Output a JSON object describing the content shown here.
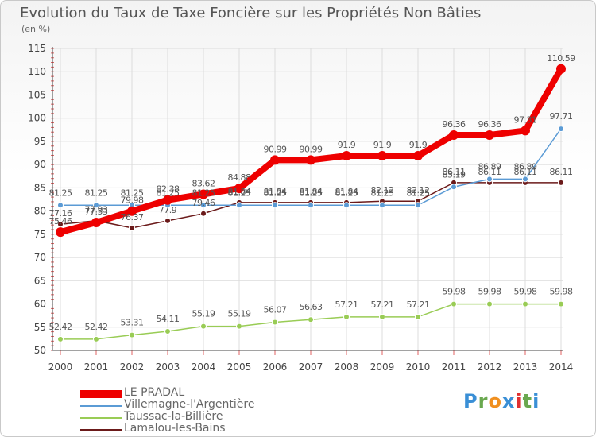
{
  "chart_data": {
    "type": "line",
    "title": "Evolution du Taux de Taxe Foncière sur les Propriétés Non Bâties",
    "subtitle": "(en %)",
    "x": [
      "2000",
      "2001",
      "2002",
      "2003",
      "2004",
      "2005",
      "2006",
      "2007",
      "2008",
      "2009",
      "2010",
      "2011",
      "2012",
      "2013",
      "2014"
    ],
    "ylim": [
      50,
      115
    ],
    "yticks": [
      50,
      55,
      60,
      65,
      70,
      75,
      80,
      85,
      90,
      95,
      100,
      105,
      110,
      115
    ],
    "grid": true,
    "series": [
      {
        "name": "LE PRADAL",
        "color": "#ee0000",
        "values": [
          75.46,
          77.53,
          79.98,
          82.38,
          83.62,
          84.88,
          90.99,
          90.99,
          91.9,
          91.9,
          91.9,
          96.36,
          96.36,
          97.31,
          110.59
        ],
        "labels": [
          "75.46",
          "77.53",
          "79.98",
          "82.38",
          "83.62",
          "84.88",
          "90.99",
          "90.99",
          "91.9",
          "91.9",
          "91.9",
          "96.36",
          "96.36",
          "97.31",
          "110.59"
        ]
      },
      {
        "name": "Villemagne-l'Argentière",
        "color": "#5b9bd5",
        "values": [
          81.25,
          81.25,
          81.25,
          81.25,
          81.25,
          81.25,
          81.25,
          81.25,
          81.25,
          81.25,
          81.25,
          85.19,
          86.89,
          86.89,
          97.71
        ],
        "labels": [
          "81.25",
          "81.25",
          "81.25",
          "81.25",
          "81.25",
          "81.25",
          "81.25",
          "81.25",
          "81.25",
          "81.25",
          "81.25",
          "85.19",
          "86.89",
          "86.89",
          "97.71"
        ]
      },
      {
        "name": "Taussac-la-Billière",
        "color": "#99cc55",
        "values": [
          52.42,
          52.42,
          53.31,
          54.11,
          55.19,
          55.19,
          56.07,
          56.63,
          57.21,
          57.21,
          57.21,
          59.98,
          59.98,
          59.98,
          59.98
        ],
        "labels": [
          "52.42",
          "52.42",
          "53.31",
          "54.11",
          "55.19",
          "55.19",
          "56.07",
          "56.63",
          "57.21",
          "57.21",
          "57.21",
          "59.98",
          "59.98",
          "59.98",
          "59.98"
        ]
      },
      {
        "name": "Lamalou-les-Bains",
        "color": "#6b1a1a",
        "values": [
          77.16,
          77.93,
          76.37,
          77.9,
          79.46,
          81.84,
          81.84,
          81.84,
          81.84,
          82.12,
          82.12,
          86.11,
          86.11,
          86.11,
          86.11
        ],
        "labels": [
          "77.16",
          "77.93",
          "76.37",
          "77.9",
          "79.46",
          "81.84",
          "81.84",
          "81.84",
          "81.84",
          "82.12",
          "82.12",
          "86.11",
          "86.11",
          "86.11",
          "86.11"
        ]
      }
    ]
  },
  "logo": {
    "letters": [
      "P",
      "r",
      "o",
      "x",
      "i",
      "t",
      "i"
    ],
    "colors": [
      "#3a8fd6",
      "#6aa84f",
      "#f09020",
      "#3a8fd6",
      "#e03030",
      "#6aa84f",
      "#3a8fd6"
    ]
  }
}
